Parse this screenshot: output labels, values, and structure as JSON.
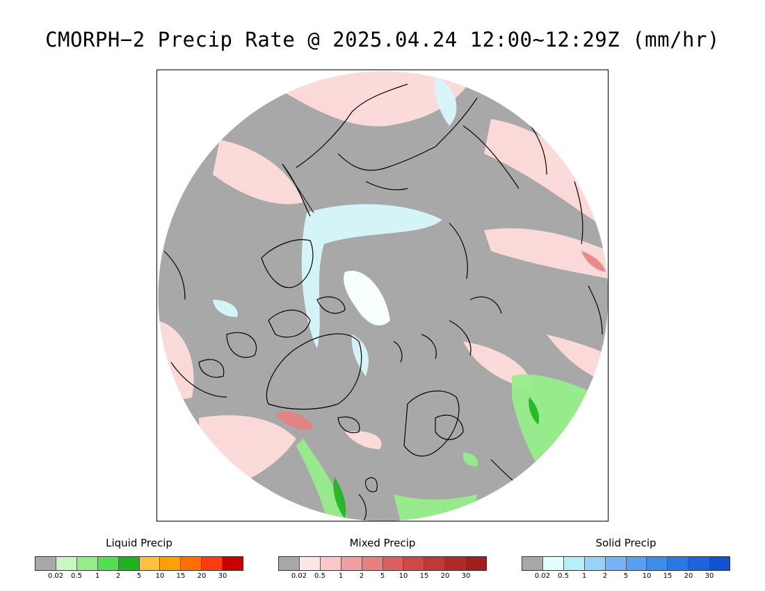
{
  "title": "CMORPH−2 Precip Rate @ 2025.04.24 12:00~12:29Z (mm/hr)",
  "map": {
    "projection": "north-polar-stereographic",
    "no_precip_color": "#a8a8a8",
    "coastline_color": "#000000"
  },
  "legends": [
    {
      "title": "Liquid Precip",
      "colors": [
        "#a8a8a8",
        "#c8f8c0",
        "#96ee8a",
        "#50e050",
        "#1eb41e",
        "#ffc040",
        "#ffa000",
        "#ff7000",
        "#ff3c10",
        "#c80000"
      ],
      "ticks": [
        "0.02",
        "0.5",
        "1",
        "2",
        "5",
        "10",
        "15",
        "20",
        "30"
      ]
    },
    {
      "title": "Mixed Precip",
      "colors": [
        "#a8a8a8",
        "#ffe6e6",
        "#ffc8c8",
        "#f0a0a0",
        "#e88080",
        "#dc6060",
        "#d04848",
        "#c03838",
        "#b02828",
        "#a01e1e"
      ],
      "ticks": [
        "0.02",
        "0.5",
        "1",
        "2",
        "5",
        "10",
        "15",
        "20",
        "30"
      ]
    },
    {
      "title": "Solid Precip",
      "colors": [
        "#a8a8a8",
        "#e0ffff",
        "#b4f0fa",
        "#96d2fa",
        "#78b4f5",
        "#5aa0f0",
        "#3c8ceb",
        "#2878e6",
        "#1e64dc",
        "#1450d2"
      ],
      "ticks": [
        "0.02",
        "0.5",
        "1",
        "2",
        "5",
        "10",
        "15",
        "20",
        "30"
      ]
    }
  ]
}
